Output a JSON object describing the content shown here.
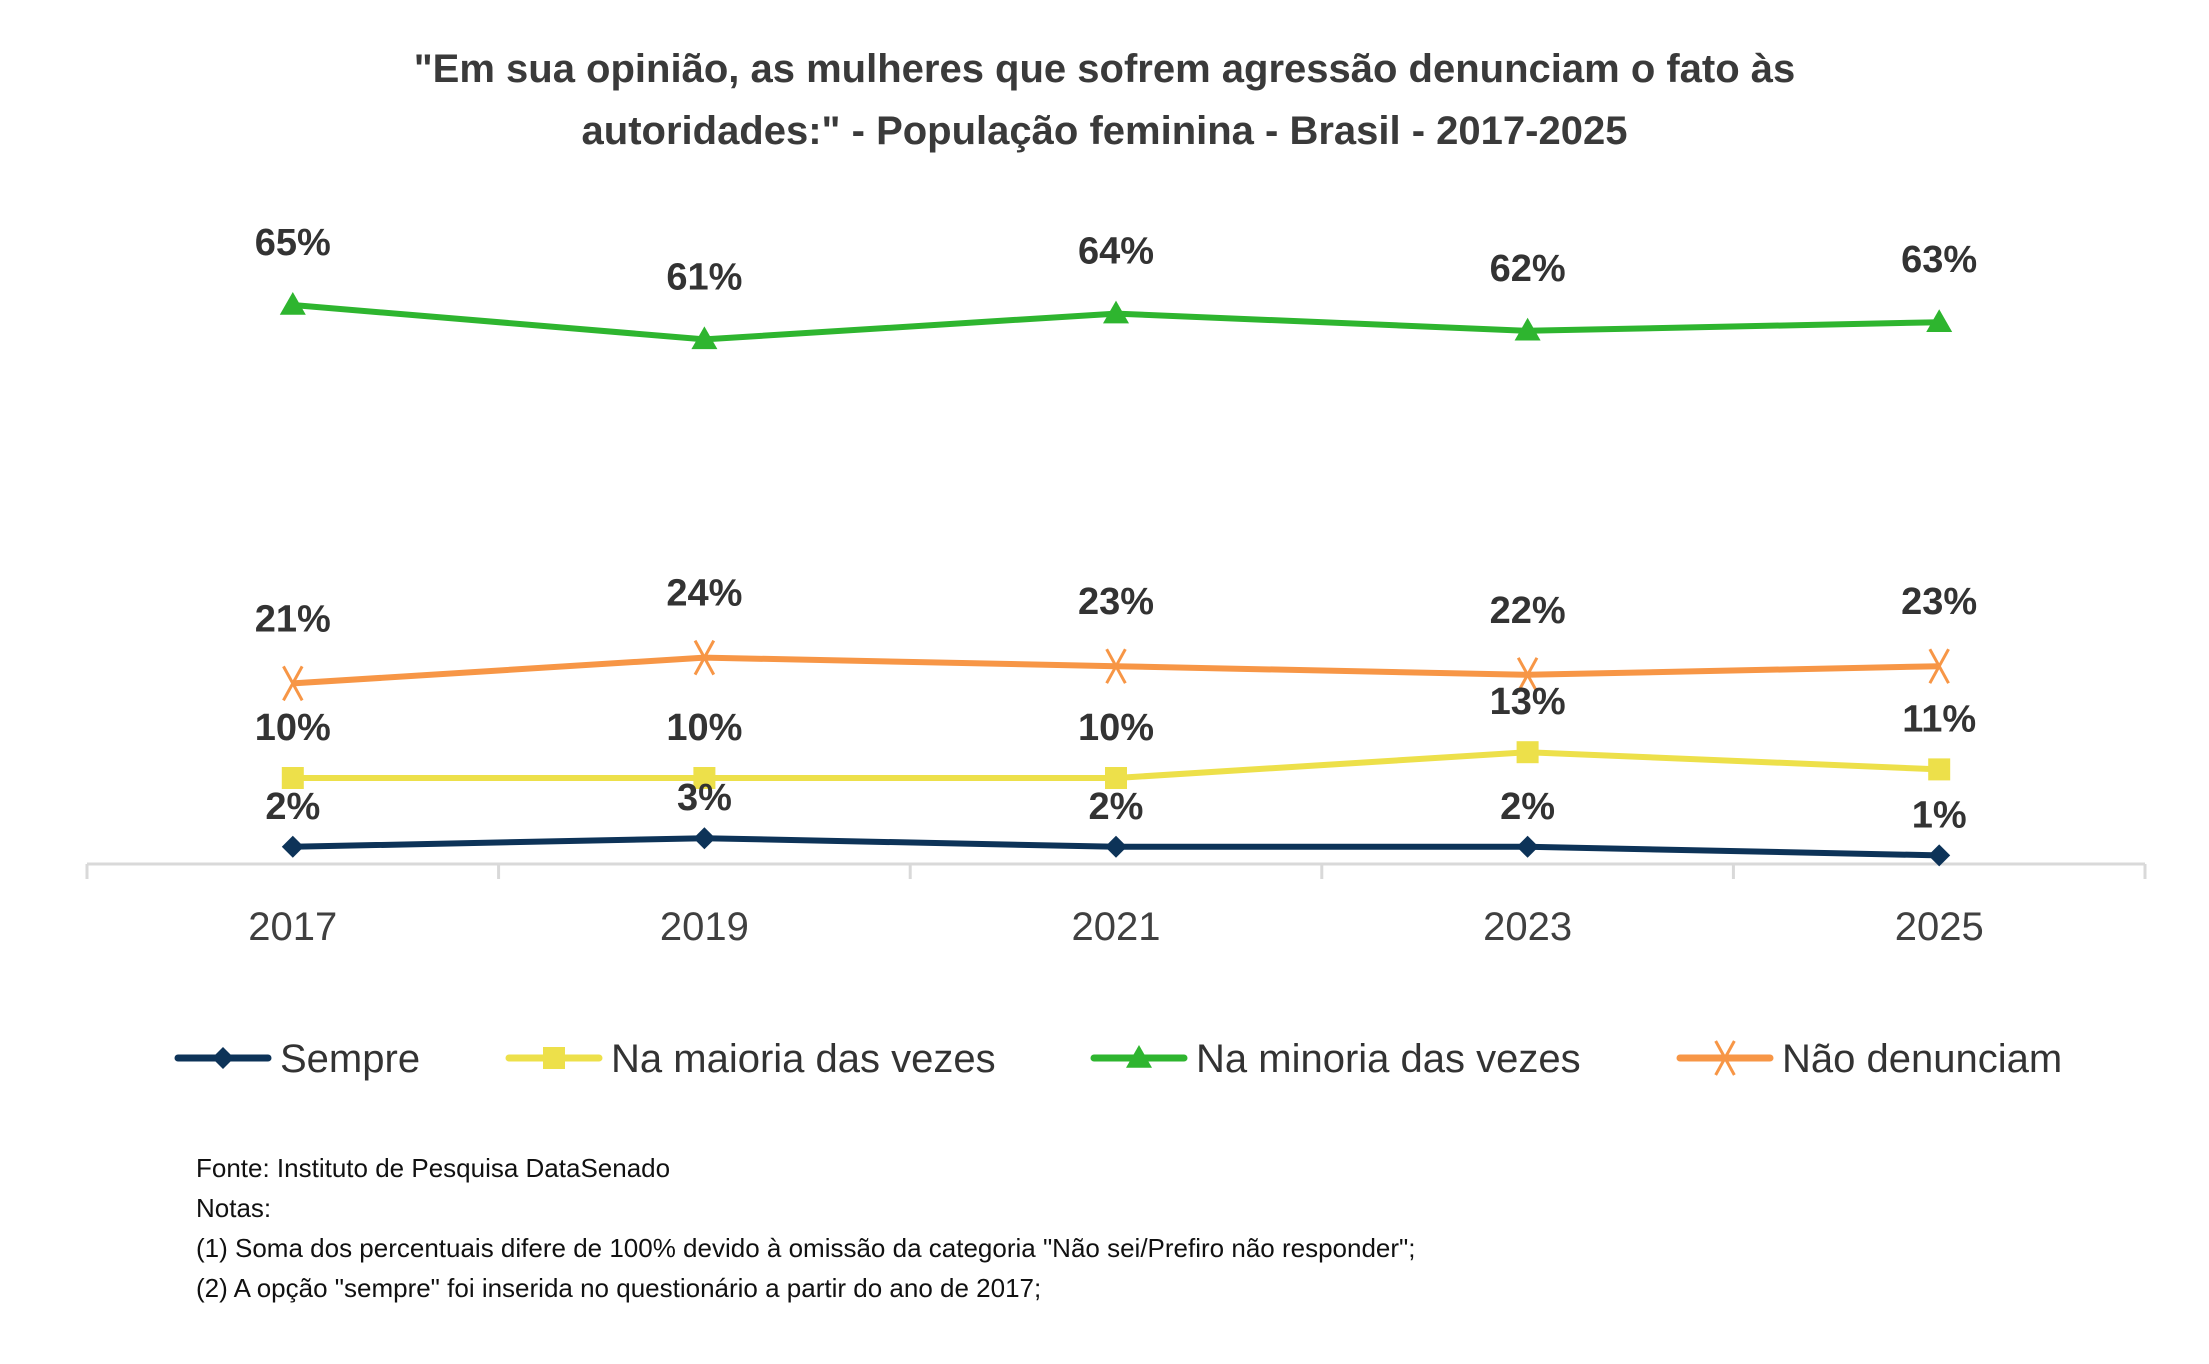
{
  "chart_data": {
    "type": "line",
    "title": "\"Em sua opinião, as mulheres que sofrem agressão denunciam o fato às autoridades:\" - População feminina - Brasil - 2017-2025",
    "title_lines": [
      "\"Em sua opinião, as mulheres que sofrem agressão denunciam o fato às",
      "autoridades:\" - População feminina - Brasil - 2017-2025"
    ],
    "xlabel": "",
    "ylabel": "",
    "categories": [
      "2017",
      "2019",
      "2021",
      "2023",
      "2025"
    ],
    "ylim": [
      0,
      70
    ],
    "grid": false,
    "legend_position": "bottom",
    "series": [
      {
        "name": "Sempre",
        "values": [
          2,
          3,
          2,
          2,
          1
        ],
        "labels": [
          "2%",
          "3%",
          "2%",
          "2%",
          "1%"
        ],
        "color": "#0d3358",
        "marker": "diamond"
      },
      {
        "name": "Na maioria das vezes",
        "values": [
          10,
          10,
          10,
          13,
          11
        ],
        "labels": [
          "10%",
          "10%",
          "10%",
          "13%",
          "11%"
        ],
        "color": "#ede04a",
        "marker": "square"
      },
      {
        "name": "Na minoria das vezes",
        "values": [
          65,
          61,
          64,
          62,
          63
        ],
        "labels": [
          "65%",
          "61%",
          "64%",
          "62%",
          "63%"
        ],
        "color": "#2eb52f",
        "marker": "triangle"
      },
      {
        "name": "Não denunciam",
        "values": [
          21,
          24,
          23,
          22,
          23
        ],
        "labels": [
          "21%",
          "24%",
          "23%",
          "22%",
          "23%"
        ],
        "color": "#f79646",
        "marker": "x"
      }
    ]
  },
  "notes": {
    "source": "Fonte: Instituto de Pesquisa DataSenado",
    "heading": "Notas:",
    "items": [
      "(1) Soma dos percentuais difere de 100% devido à omissão da categoria \"Não sei/Prefiro não responder\";",
      "(2) A opção \"sempre\" foi inserida no questionário a partir do ano de 2017;"
    ]
  }
}
